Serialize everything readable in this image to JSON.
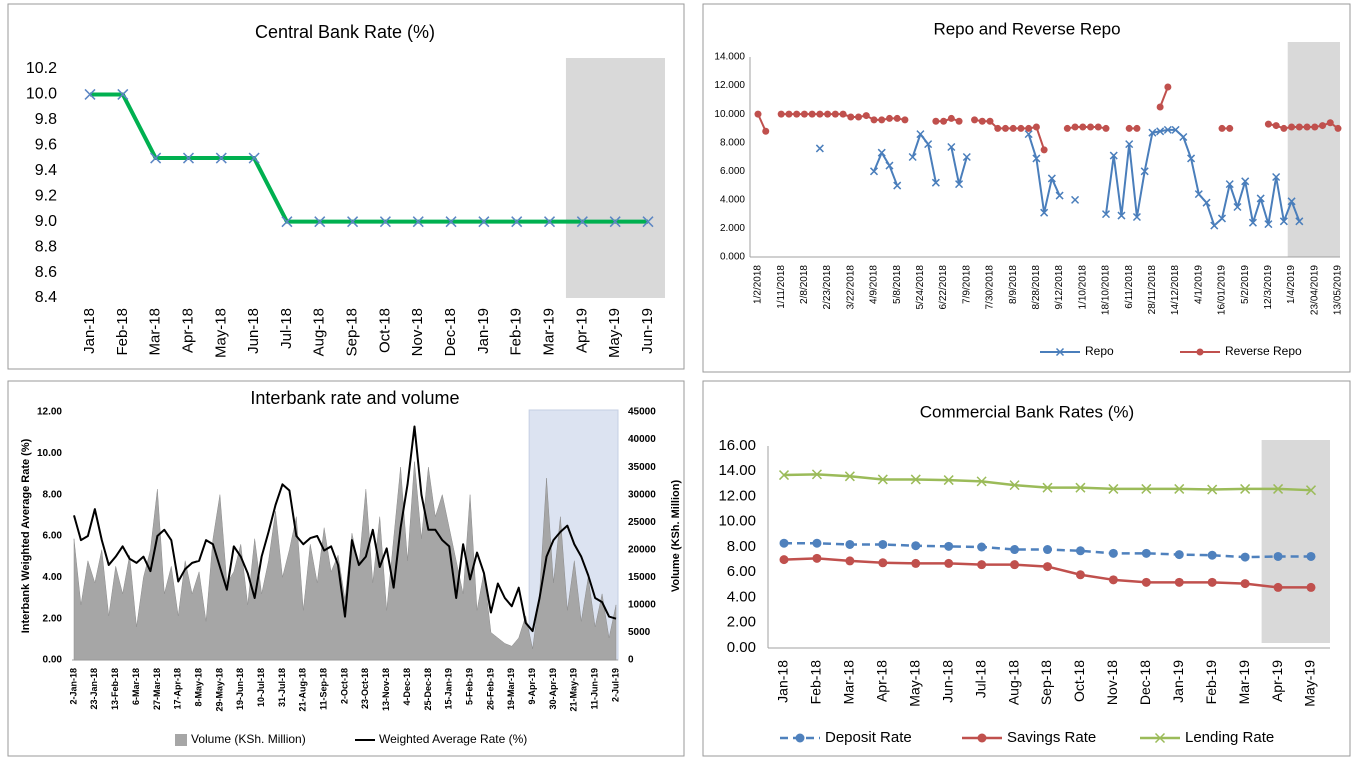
{
  "chart_data": [
    {
      "type": "line",
      "title": "Central Bank Rate (%)",
      "categories": [
        "Jan-18",
        "Feb-18",
        "Mar-18",
        "Apr-18",
        "May-18",
        "Jun-18",
        "Jul-18",
        "Aug-18",
        "Sep-18",
        "Oct-18",
        "Nov-18",
        "Dec-18",
        "Jan-19",
        "Feb-19",
        "Mar-19",
        "Apr-19",
        "May-19",
        "Jun-19"
      ],
      "series": [
        {
          "color": "#00b050",
          "marker": "x",
          "marker_color": "#5b85c3",
          "values": [
            10,
            10,
            9.5,
            9.5,
            9.5,
            9.5,
            9,
            9,
            9,
            9,
            9,
            9,
            9,
            9,
            9,
            9,
            9,
            9
          ]
        }
      ],
      "ylim": [
        8.4,
        10.2
      ],
      "yticks": [
        8.4,
        8.6,
        8.8,
        {
          "value": 9,
          "label": "9.0"
        },
        9.2,
        9.4,
        9.6,
        9.8,
        {
          "value": 10,
          "label": "10.0"
        },
        10.2
      ],
      "shaded_from": "Apr-19",
      "legend": false
    },
    {
      "type": "line",
      "title": "Repo and Reverse Repo",
      "categories": [
        "1/2/2018",
        null,
        null,
        "1/11/2018",
        null,
        null,
        "2/8/2018",
        null,
        null,
        "2/23/2018",
        null,
        null,
        "3/22/2018",
        null,
        null,
        "4/9/2018",
        null,
        null,
        "5/8/2018",
        null,
        null,
        "5/24/2018",
        null,
        null,
        "6/22/2018",
        null,
        null,
        "7/9/2018",
        null,
        null,
        "7/30/2018",
        null,
        null,
        "8/9/2018",
        null,
        null,
        "8/28/2018",
        null,
        null,
        "9/12/2018",
        null,
        null,
        "1/10/2018",
        null,
        null,
        "18/10/2018",
        null,
        null,
        "6/11/2018",
        null,
        null,
        "28/11/2018",
        null,
        null,
        "14/12/2018",
        null,
        null,
        "4/1/2019",
        null,
        null,
        "16/01/2019",
        null,
        null,
        "5/2/2019",
        null,
        null,
        "12/3/2019",
        null,
        null,
        "1/4/2019",
        null,
        null,
        "23/04/2019",
        null,
        null,
        "13/05/2019"
      ],
      "series": [
        {
          "name": "Repo",
          "color": "#4a7ebb",
          "marker": "x",
          "values": [
            null,
            null,
            null,
            null,
            null,
            null,
            null,
            null,
            7.6,
            null,
            null,
            null,
            null,
            null,
            null,
            6.0,
            7.3,
            6.4,
            5.0,
            null,
            7.0,
            8.6,
            7.9,
            5.2,
            null,
            7.7,
            5.1,
            7.0,
            null,
            null,
            null,
            null,
            null,
            null,
            null,
            8.6,
            6.9,
            3.1,
            5.5,
            4.3,
            null,
            4.0,
            null,
            null,
            null,
            3.0,
            7.1,
            2.9,
            7.9,
            2.8,
            6.0,
            8.7,
            8.8,
            8.9,
            8.9,
            8.4,
            6.9,
            4.4,
            3.8,
            2.2,
            2.7,
            5.1,
            3.5,
            5.3,
            2.4,
            4.1,
            2.3,
            5.6,
            2.5,
            3.9,
            2.5,
            null,
            null,
            null,
            null,
            null
          ]
        },
        {
          "name": "Reverse Repo",
          "color": "#c0504d",
          "marker": "circle",
          "values": [
            10.0,
            8.8,
            null,
            10.0,
            10.0,
            10.0,
            10.0,
            10.0,
            10.0,
            10.0,
            10.0,
            10.0,
            9.8,
            9.8,
            9.9,
            9.6,
            9.6,
            9.7,
            9.7,
            9.6,
            null,
            null,
            null,
            9.5,
            9.5,
            9.7,
            9.5,
            null,
            9.6,
            9.5,
            9.5,
            9.0,
            9.0,
            9.0,
            9.0,
            9.0,
            9.1,
            7.5,
            null,
            null,
            9.0,
            9.1,
            9.1,
            9.1,
            9.1,
            9.0,
            null,
            null,
            9.0,
            9.0,
            null,
            null,
            10.5,
            11.9,
            null,
            null,
            null,
            null,
            null,
            null,
            9.0,
            9.0,
            null,
            null,
            null,
            null,
            9.3,
            9.2,
            9.0,
            9.1,
            9.1,
            9.1,
            9.1,
            9.2,
            9.4,
            9.0
          ]
        }
      ],
      "ylim": [
        0,
        14
      ],
      "yticks": [
        {
          "value": 0,
          "label": "0.000"
        },
        {
          "value": 2,
          "label": "2.000"
        },
        {
          "value": 4,
          "label": "4.000"
        },
        {
          "value": 6,
          "label": "6.000"
        },
        {
          "value": 8,
          "label": "8.000"
        },
        {
          "value": 10,
          "label": "10.000"
        },
        {
          "value": 12,
          "label": "12.000"
        },
        {
          "value": 14,
          "label": "14.000"
        }
      ],
      "shaded_from": "1/4/2019",
      "legend": true
    },
    {
      "type": "combo",
      "title": "Interbank rate and volume",
      "ylabel": "Interbank Weighted Average Rate (%)",
      "y2label": "Volume (KSh. Million)",
      "categories": [
        "2-Jan-18",
        null,
        null,
        "23-Jan-18",
        null,
        null,
        "13-Feb-18",
        null,
        null,
        "6-Mar-18",
        null,
        null,
        "27-Mar-18",
        null,
        null,
        "17-Apr-18",
        null,
        null,
        "8-May-18",
        null,
        null,
        "29-May-18",
        null,
        null,
        "19-Jun-18",
        null,
        null,
        "10-Jul-18",
        null,
        null,
        "31-Jul-18",
        null,
        null,
        "21-Aug-18",
        null,
        null,
        "11-Sep-18",
        null,
        null,
        "2-Oct-18",
        null,
        null,
        "23-Oct-18",
        null,
        null,
        "13-Nov-18",
        null,
        null,
        "4-Dec-18",
        null,
        null,
        "25-Dec-18",
        null,
        null,
        "15-Jan-19",
        null,
        null,
        "5-Feb-19",
        null,
        null,
        "26-Feb-19",
        null,
        null,
        "19-Mar-19",
        null,
        null,
        "9-Apr-19",
        null,
        null,
        "30-Apr-19",
        null,
        null,
        "21-May-19",
        null,
        null,
        "11-Jun-19",
        null,
        null,
        "2-Jul-19"
      ],
      "series": [
        {
          "name": "Volume (KSh. Million)",
          "type": "area",
          "axis": "y2",
          "color": "#a6a6a6",
          "values": [
            22000,
            10000,
            18000,
            14000,
            20000,
            8000,
            17000,
            12000,
            19000,
            6000,
            15000,
            20000,
            31000,
            12000,
            17000,
            8000,
            18000,
            12000,
            16000,
            7000,
            22000,
            30000,
            14000,
            16000,
            21000,
            10000,
            22000,
            12000,
            18000,
            27000,
            15000,
            20000,
            26000,
            9000,
            21000,
            14000,
            24000,
            16000,
            19000,
            11000,
            23000,
            17000,
            31000,
            14000,
            26000,
            9000,
            22000,
            35000,
            18000,
            36000,
            22000,
            35000,
            26000,
            30000,
            24000,
            18000,
            12000,
            30000,
            9000,
            16000,
            5000,
            4000,
            3000,
            2500,
            4000,
            8000,
            2000,
            12000,
            33000,
            14000,
            26000,
            9000,
            18000,
            7000,
            15000,
            6000,
            12000,
            4000,
            10000
          ]
        },
        {
          "name": "Weighted Average Rate (%)",
          "type": "line",
          "color": "#000000",
          "values": [
            7.0,
            5.8,
            6.0,
            7.3,
            5.8,
            4.6,
            5.0,
            5.5,
            4.9,
            4.7,
            5.0,
            4.3,
            6.0,
            6.3,
            5.8,
            3.8,
            4.4,
            4.7,
            4.8,
            5.8,
            5.6,
            4.5,
            3.4,
            5.5,
            5.0,
            4.2,
            3.0,
            5.0,
            6.2,
            7.5,
            8.5,
            8.2,
            6.0,
            5.6,
            5.9,
            6.0,
            5.3,
            5.5,
            4.6,
            2.1,
            5.8,
            4.6,
            5.0,
            6.3,
            4.5,
            5.4,
            3.5,
            6.4,
            8.5,
            11.3,
            8.0,
            6.3,
            6.3,
            5.8,
            5.5,
            3.0,
            5.6,
            3.9,
            5.2,
            4.2,
            2.3,
            3.7,
            3.0,
            2.6,
            3.5,
            1.8,
            1.4,
            3.0,
            5.0,
            5.8,
            6.2,
            6.5,
            5.6,
            5.0,
            4.1,
            3.0,
            2.8,
            2.1,
            2.0
          ]
        }
      ],
      "ylim": [
        0,
        12
      ],
      "yticks": [
        {
          "value": 0,
          "label": "0.00"
        },
        {
          "value": 2,
          "label": "2.00"
        },
        {
          "value": 4,
          "label": "4.00"
        },
        {
          "value": 6,
          "label": "6.00"
        },
        {
          "value": 8,
          "label": "8.00"
        },
        {
          "value": 10,
          "label": "10.00"
        },
        {
          "value": 12,
          "label": "12.00"
        }
      ],
      "y2lim": [
        0,
        45000
      ],
      "y2ticks": [
        0,
        5000,
        10000,
        15000,
        20000,
        25000,
        30000,
        35000,
        40000,
        45000
      ],
      "shaded_from": "9-Apr-19",
      "legend": true
    },
    {
      "type": "line",
      "title": "Commercial Bank Rates (%)",
      "categories": [
        "Jan-18",
        "Feb-18",
        "Mar-18",
        "Apr-18",
        "May-18",
        "Jun-18",
        "Jul-18",
        "Aug-18",
        "Sep-18",
        "Oct-18",
        "Nov-18",
        "Dec-18",
        "Jan-19",
        "Feb-19",
        "Mar-19",
        "Apr-19",
        "May-19"
      ],
      "series": [
        {
          "name": "Deposit Rate",
          "color": "#4f81bd",
          "marker": "circle",
          "dash": true,
          "values": [
            8.3,
            8.3,
            8.2,
            8.2,
            8.1,
            8.05,
            8.0,
            7.8,
            7.8,
            7.7,
            7.5,
            7.5,
            7.4,
            7.35,
            7.2,
            7.25,
            7.25
          ]
        },
        {
          "name": "Savings Rate",
          "color": "#c0504d",
          "marker": "circle",
          "values": [
            7.0,
            7.1,
            6.9,
            6.75,
            6.7,
            6.7,
            6.6,
            6.6,
            6.45,
            5.8,
            5.4,
            5.2,
            5.2,
            5.2,
            5.1,
            4.8,
            4.8
          ]
        },
        {
          "name": "Lending Rate",
          "color": "#9bbb59",
          "marker": "x",
          "values": [
            13.7,
            13.75,
            13.6,
            13.35,
            13.35,
            13.3,
            13.2,
            12.9,
            12.7,
            12.7,
            12.6,
            12.6,
            12.6,
            12.55,
            12.6,
            12.6,
            12.5
          ]
        }
      ],
      "ylim": [
        0,
        16
      ],
      "yticks": [
        {
          "value": 0,
          "label": "0.00"
        },
        {
          "value": 2,
          "label": "2.00"
        },
        {
          "value": 4,
          "label": "4.00"
        },
        {
          "value": 6,
          "label": "6.00"
        },
        {
          "value": 8,
          "label": "8.00"
        },
        {
          "value": 10,
          "label": "10.00"
        },
        {
          "value": 12,
          "label": "12.00"
        },
        {
          "value": 14,
          "label": "14.00"
        },
        {
          "value": 16,
          "label": "16.00"
        }
      ],
      "shaded_from": "Apr-19",
      "legend": true
    }
  ]
}
